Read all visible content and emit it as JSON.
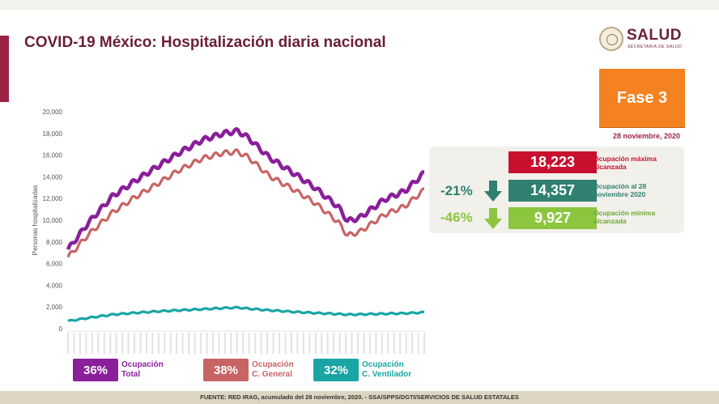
{
  "header": {
    "title": "COVID-19 México: Hospitalización diaria nacional",
    "logo_name": "SALUD",
    "logo_sub": "SECRETARÍA DE SALUD"
  },
  "phase": {
    "label": "Fase 3",
    "date": "28 noviembre, 2020",
    "color": "#f58220"
  },
  "stats": {
    "max": {
      "value": "18,223",
      "label": "Ocupación máxima alcanzada",
      "color": "#c8102e"
    },
    "current": {
      "value": "14,357",
      "label": "Ocupación al 28 noviembre 2020",
      "change": "-21%",
      "color": "#2f8070"
    },
    "min": {
      "value": "9,927",
      "label": "Ocupación mínima alcanzada",
      "change": "-46%",
      "color": "#8cc63f"
    }
  },
  "legend": [
    {
      "pct": "36%",
      "label1": "Ocupación",
      "label2": "Total",
      "color": "#8a1f9a"
    },
    {
      "pct": "38%",
      "label1": "Ocupación",
      "label2": "C. General",
      "color": "#c86464"
    },
    {
      "pct": "32%",
      "label1": "Ocupación",
      "label2": "C. Ventilador",
      "color": "#1aa5a5"
    }
  ],
  "footer": "FUENTE: RED IRAG, acumulado del 28 noviembre, 2020. -  SSA/SPPS/DGTI/SERVICIOS DE SALUD ESTATALES",
  "chart_data": {
    "type": "line",
    "ylabel": "Personas hospitalizadas",
    "ylim": [
      0,
      20000
    ],
    "yticks": [
      "0",
      "2,000",
      "4,000",
      "6,000",
      "8,000",
      "10,000",
      "12,000",
      "14,000",
      "16,000",
      "18,000",
      "20,000"
    ],
    "grid": false,
    "x_start": "2020-04-01",
    "x_end": "2020-11-28",
    "series": [
      {
        "name": "Ocupación Total",
        "color": "#8a1f9a",
        "x": [
          "2020-04-01",
          "2020-04-15",
          "2020-05-01",
          "2020-05-15",
          "2020-06-01",
          "2020-06-15",
          "2020-07-01",
          "2020-07-15",
          "2020-07-25",
          "2020-08-01",
          "2020-08-15",
          "2020-09-01",
          "2020-09-15",
          "2020-10-01",
          "2020-10-07",
          "2020-10-15",
          "2020-11-01",
          "2020-11-15",
          "2020-11-28"
        ],
        "values": [
          7300,
          9800,
          12200,
          13500,
          15000,
          16200,
          17400,
          18000,
          18223,
          17600,
          15800,
          14300,
          13000,
          11200,
          9927,
          10200,
          11900,
          12700,
          14357
        ]
      },
      {
        "name": "Ocupación C. General",
        "color": "#c86464",
        "x": [
          "2020-04-01",
          "2020-04-15",
          "2020-05-01",
          "2020-05-15",
          "2020-06-01",
          "2020-06-15",
          "2020-07-01",
          "2020-07-15",
          "2020-07-25",
          "2020-08-01",
          "2020-08-15",
          "2020-09-01",
          "2020-09-15",
          "2020-10-01",
          "2020-10-07",
          "2020-10-15",
          "2020-11-01",
          "2020-11-15",
          "2020-11-28"
        ],
        "values": [
          6600,
          8700,
          10700,
          12000,
          13400,
          14600,
          15700,
          16200,
          16300,
          15800,
          14100,
          12800,
          11600,
          9800,
          8600,
          8900,
          10500,
          11300,
          12800
        ]
      },
      {
        "name": "Ocupación C. Ventilador",
        "color": "#1aa5a5",
        "x": [
          "2020-04-01",
          "2020-04-15",
          "2020-05-01",
          "2020-05-15",
          "2020-06-01",
          "2020-06-15",
          "2020-07-01",
          "2020-07-15",
          "2020-07-25",
          "2020-08-01",
          "2020-08-15",
          "2020-09-01",
          "2020-09-15",
          "2020-10-01",
          "2020-10-07",
          "2020-10-15",
          "2020-11-01",
          "2020-11-15",
          "2020-11-28"
        ],
        "values": [
          700,
          1000,
          1300,
          1450,
          1600,
          1700,
          1800,
          1900,
          1950,
          1850,
          1700,
          1550,
          1450,
          1350,
          1300,
          1320,
          1380,
          1420,
          1500
        ]
      }
    ]
  }
}
